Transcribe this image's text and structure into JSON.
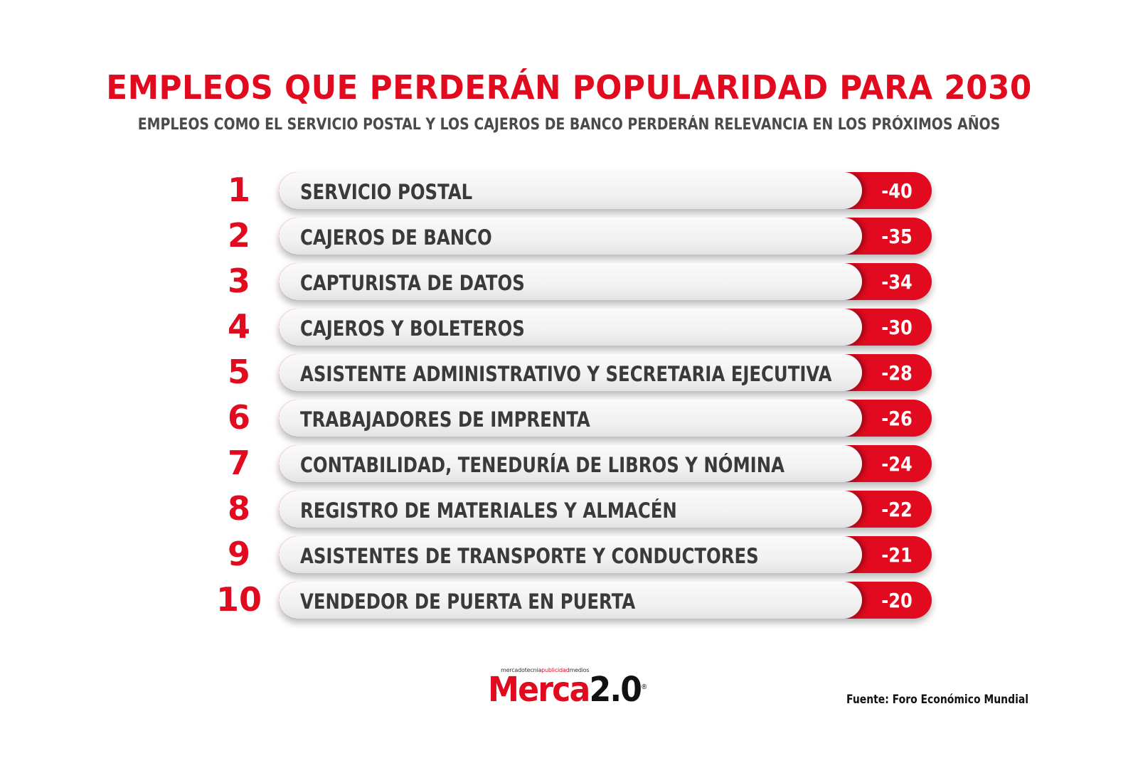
{
  "chart_data": {
    "type": "bar",
    "title": "EMPLEOS QUE PERDERÁN POPULARIDAD PARA 2030",
    "subtitle": "EMPLEOS COMO EL SERVICIO POSTAL Y LOS CAJEROS DE BANCO PERDERÁN RELEVANCIA EN LOS PRÓXIMOS AÑOS",
    "ranks": [
      "1",
      "2",
      "3",
      "4",
      "5",
      "6",
      "7",
      "8",
      "9",
      "10"
    ],
    "categories": [
      "SERVICIO POSTAL",
      "CAJEROS DE BANCO",
      "CAPTURISTA DE DATOS",
      "CAJEROS Y BOLETEROS",
      "ASISTENTE ADMINISTRATIVO Y SECRETARIA EJECUTIVA",
      "TRABAJADORES DE IMPRENTA",
      "CONTABILIDAD, TENEDURÍA DE LIBROS Y NÓMINA",
      "REGISTRO DE MATERIALES Y ALMACÉN",
      "ASISTENTES DE TRANSPORTE Y CONDUCTORES",
      "VENDEDOR DE PUERTA EN PUERTA"
    ],
    "values": [
      -40,
      -35,
      -34,
      -30,
      -28,
      -26,
      -24,
      -22,
      -21,
      -20
    ],
    "value_labels": [
      "-40",
      "-35",
      "-34",
      "-30",
      "-28",
      "-26",
      "-24",
      "-22",
      "-21",
      "-20"
    ]
  },
  "logo": {
    "tagline_1": "mercadotecnia",
    "tagline_2": "publicidad",
    "tagline_3": "medios",
    "wordmark_1": "Merca",
    "wordmark_2": "2.0",
    "registered": "®"
  },
  "source": "Fuente: Foro Económico Mundial",
  "colors": {
    "accent": "#e10a1f",
    "bar_light": "#f1f1f1",
    "label_text": "#3a3a3a",
    "subtitle": "#4a4a4a"
  }
}
